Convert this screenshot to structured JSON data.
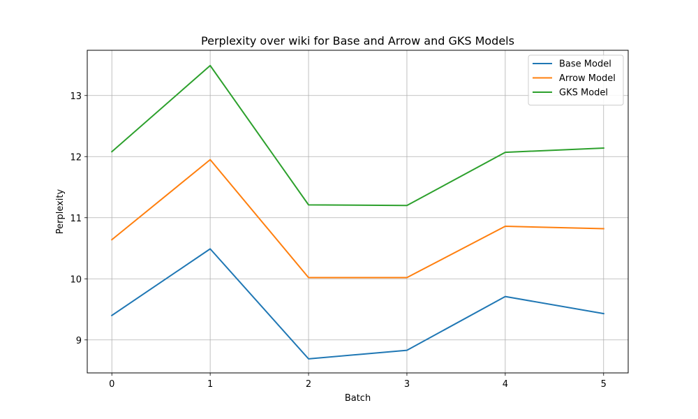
{
  "chart_data": {
    "type": "line",
    "title": "Perplexity over wiki for Base and Arrow and GKS Models",
    "xlabel": "Batch",
    "ylabel": "Perplexity",
    "x": [
      0,
      1,
      2,
      3,
      4,
      5
    ],
    "xticks": [
      0,
      1,
      2,
      3,
      4,
      5
    ],
    "yticks": [
      9,
      10,
      11,
      12,
      13
    ],
    "xlim": [
      -0.25,
      5.25
    ],
    "ylim": [
      8.46,
      13.74
    ],
    "grid": true,
    "legend_position": "top-right",
    "series": [
      {
        "name": "Base Model",
        "color": "#1f77b4",
        "values": [
          9.4,
          10.49,
          8.69,
          8.83,
          9.71,
          9.43
        ]
      },
      {
        "name": "Arrow Model",
        "color": "#ff7f0e",
        "values": [
          10.64,
          11.95,
          10.02,
          10.02,
          10.86,
          10.82
        ]
      },
      {
        "name": "GKS Model",
        "color": "#2ca02c",
        "values": [
          12.08,
          13.49,
          11.21,
          11.2,
          12.07,
          12.14
        ]
      }
    ]
  }
}
